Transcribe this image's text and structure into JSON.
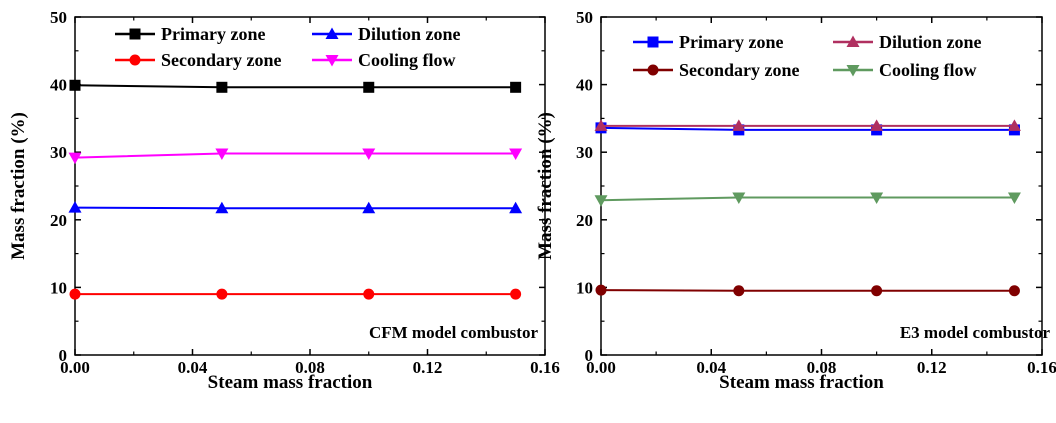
{
  "chart_data": [
    {
      "type": "line",
      "annotation": "CFM model combustor",
      "xlabel": "Steam mass fraction",
      "ylabel": "Mass fraction (%)",
      "x": [
        0.0,
        0.05,
        0.1,
        0.15
      ],
      "xlim": [
        0.0,
        0.16
      ],
      "ylim": [
        0,
        50
      ],
      "xticks": [
        "0.00",
        "0.04",
        "0.08",
        "0.12",
        "0.16"
      ],
      "yticks": [
        "0",
        "10",
        "20",
        "30",
        "40",
        "50"
      ],
      "legend_position": "top",
      "series": [
        {
          "name": "Primary zone",
          "values": [
            39.9,
            39.6,
            39.6,
            39.6
          ],
          "color": "#000000",
          "marker": "square"
        },
        {
          "name": "Dilution zone",
          "values": [
            21.8,
            21.7,
            21.7,
            21.7
          ],
          "color": "#0000ff",
          "marker": "triangle-up"
        },
        {
          "name": "Secondary zone",
          "values": [
            9.0,
            9.0,
            9.0,
            9.0
          ],
          "color": "#ff0000",
          "marker": "circle"
        },
        {
          "name": "Cooling flow",
          "values": [
            29.2,
            29.8,
            29.8,
            29.8
          ],
          "color": "#ff00ff",
          "marker": "triangle-down"
        }
      ]
    },
    {
      "type": "line",
      "annotation": "E3 model combustor",
      "xlabel": "Steam mass fraction",
      "ylabel": "Mass fraction (%)",
      "x": [
        0.0,
        0.05,
        0.1,
        0.15
      ],
      "xlim": [
        0.0,
        0.16
      ],
      "ylim": [
        0,
        50
      ],
      "xticks": [
        "0.00",
        "0.04",
        "0.08",
        "0.12",
        "0.16"
      ],
      "yticks": [
        "0",
        "10",
        "20",
        "30",
        "40",
        "50"
      ],
      "legend_position": "top",
      "series": [
        {
          "name": "Primary zone",
          "values": [
            33.6,
            33.3,
            33.3,
            33.3
          ],
          "color": "#0000ff",
          "marker": "square"
        },
        {
          "name": "Dilution zone",
          "values": [
            33.9,
            33.9,
            33.9,
            33.9
          ],
          "color": "#b03060",
          "marker": "triangle-up"
        },
        {
          "name": "Secondary zone",
          "values": [
            9.6,
            9.5,
            9.5,
            9.5
          ],
          "color": "#800000",
          "marker": "circle"
        },
        {
          "name": "Cooling flow",
          "values": [
            22.9,
            23.3,
            23.3,
            23.3
          ],
          "color": "#5f9a5f",
          "marker": "triangle-down"
        }
      ]
    }
  ]
}
